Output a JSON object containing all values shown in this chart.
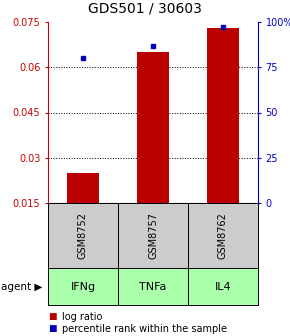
{
  "title": "GDS501 / 30603",
  "samples": [
    "GSM8752",
    "GSM8757",
    "GSM8762"
  ],
  "agents": [
    "IFNg",
    "TNFa",
    "IL4"
  ],
  "log_ratios": [
    0.025,
    0.065,
    0.073
  ],
  "percentile_ranks": [
    80,
    87,
    97
  ],
  "ylim_left": [
    0.015,
    0.075
  ],
  "ylim_right": [
    0,
    100
  ],
  "yticks_left": [
    0.015,
    0.03,
    0.045,
    0.06,
    0.075
  ],
  "yticks_right": [
    0,
    25,
    50,
    75,
    100
  ],
  "ytick_labels_right": [
    "0",
    "25",
    "50",
    "75",
    "100%"
  ],
  "bar_color": "#bb0000",
  "marker_color": "#0000bb",
  "agent_bg_color": "#aaffaa",
  "sample_bg_color": "#cccccc",
  "left_axis_color": "#cc0000",
  "right_axis_color": "#0000cc",
  "title_fontsize": 10,
  "tick_fontsize": 7,
  "agent_fontsize": 8,
  "sample_fontsize": 7,
  "legend_fontsize": 7
}
